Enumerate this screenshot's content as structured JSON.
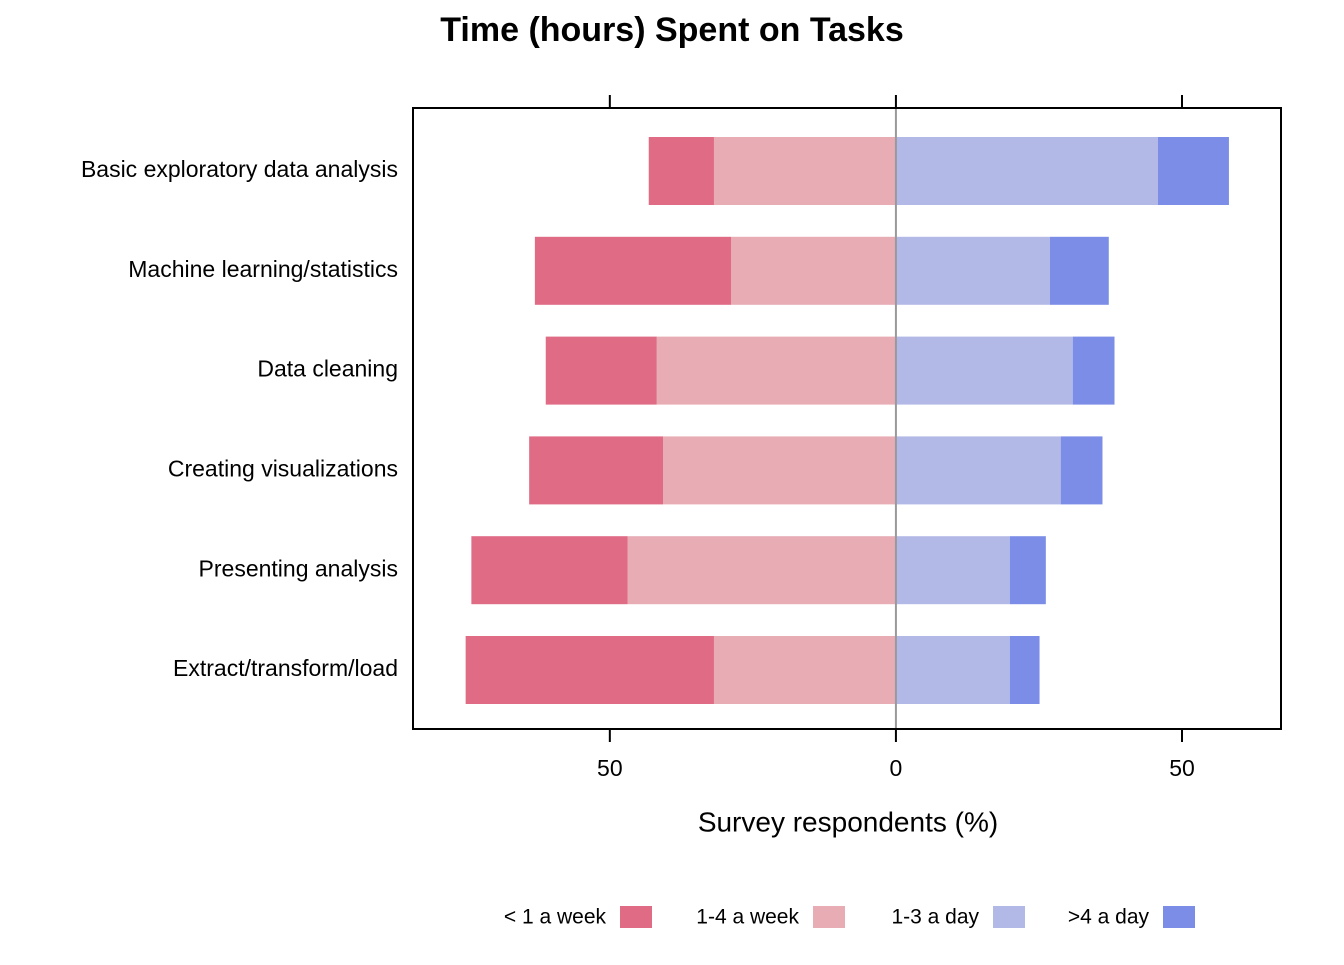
{
  "chart_data": {
    "type": "diverging-bar",
    "title": "Time (hours) Spent on Tasks",
    "x_label": "Survey respondents (%)",
    "categories": [
      "Basic exploratory data analysis",
      "Machine learning/statistics",
      "Data cleaning",
      "Creating visualizations",
      "Presenting analysis",
      "Extract/transform/load"
    ],
    "series": [
      {
        "name": "< 1 a week",
        "color": "#e06b85",
        "values": [
          -11.4,
          -34.3,
          -19.4,
          -23.4,
          -27.3,
          -43.4
        ]
      },
      {
        "name": "1-4 a week",
        "color": "#e8acb5",
        "values": [
          -31.8,
          -28.8,
          -41.8,
          -40.7,
          -46.9,
          -31.8
        ]
      },
      {
        "name": "1-3 a day",
        "color": "#b3b9e6",
        "values": [
          45.8,
          26.9,
          30.9,
          28.8,
          19.9,
          19.9
        ]
      },
      {
        "name": ">4 a day",
        "color": "#7b8de6",
        "values": [
          12.4,
          10.3,
          7.3,
          7.3,
          6.3,
          5.2
        ]
      }
    ],
    "xlim": [
      -84.4,
      67.3
    ],
    "xticks": [
      {
        "value": -50,
        "label": "50"
      },
      0,
      50
    ],
    "legend": "bottom"
  }
}
